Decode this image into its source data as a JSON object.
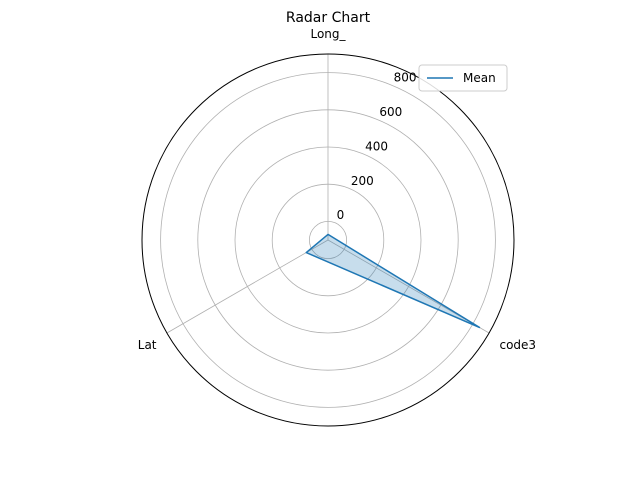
{
  "chart_data": {
    "type": "radar",
    "title": "Radar Chart",
    "axes": [
      "Long_",
      "code3",
      "Lat"
    ],
    "series": [
      {
        "name": "Mean",
        "values": [
          -70,
          840,
          35
        ]
      }
    ],
    "rlim": [
      -100,
      900
    ],
    "radial_ticks": [
      0,
      200,
      400,
      600,
      800
    ],
    "grid": true,
    "legend": "top-right",
    "colors": {
      "line": "#1f77b4",
      "fill": "#1f77b4",
      "grid": "#b0b0b0",
      "frame": "#000000"
    }
  }
}
